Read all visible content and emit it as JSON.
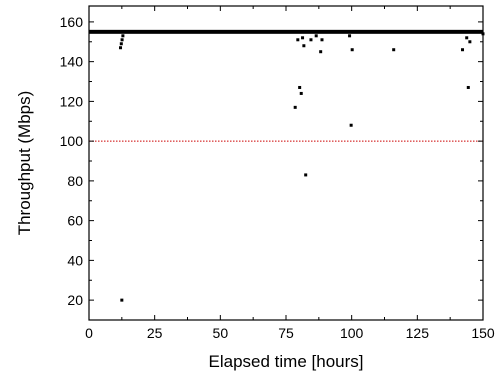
{
  "chart_data": {
    "type": "scatter",
    "title": "",
    "xlabel": "Elapsed time [hours]",
    "ylabel": "Throughput (Mbps)",
    "xlim": [
      0,
      150
    ],
    "ylim": [
      10,
      168
    ],
    "xticks": [
      0,
      25,
      50,
      75,
      100,
      125,
      150
    ],
    "yticks": [
      20,
      40,
      60,
      80,
      100,
      120,
      140,
      160
    ],
    "grid": false,
    "legend": "none",
    "colors": {
      "points": "#000000",
      "reference_line": "#cc0000",
      "axes": "#000000"
    },
    "reference_line": {
      "y": 100,
      "style": "dotted"
    },
    "baseline_band": {
      "x_from": 0,
      "x_to": 150,
      "y_low": 154,
      "y_high": 156
    },
    "series": [
      {
        "x": [
          12.0,
          12.3,
          12.6,
          12.9,
          12.5,
          78.5,
          79.5,
          80.2,
          80.8,
          81.3,
          81.8,
          82.5,
          84.5,
          86.5,
          88.2,
          88.7,
          99.2,
          99.8,
          100.2,
          116.0,
          142.2,
          143.8,
          144.4,
          145.0,
          150.0
        ],
        "y": [
          147,
          149,
          151,
          153,
          20,
          117,
          151,
          127,
          124,
          152,
          148,
          83,
          151,
          153,
          145,
          151,
          153,
          108,
          146,
          146,
          146,
          152,
          127,
          150,
          154
        ]
      }
    ]
  }
}
